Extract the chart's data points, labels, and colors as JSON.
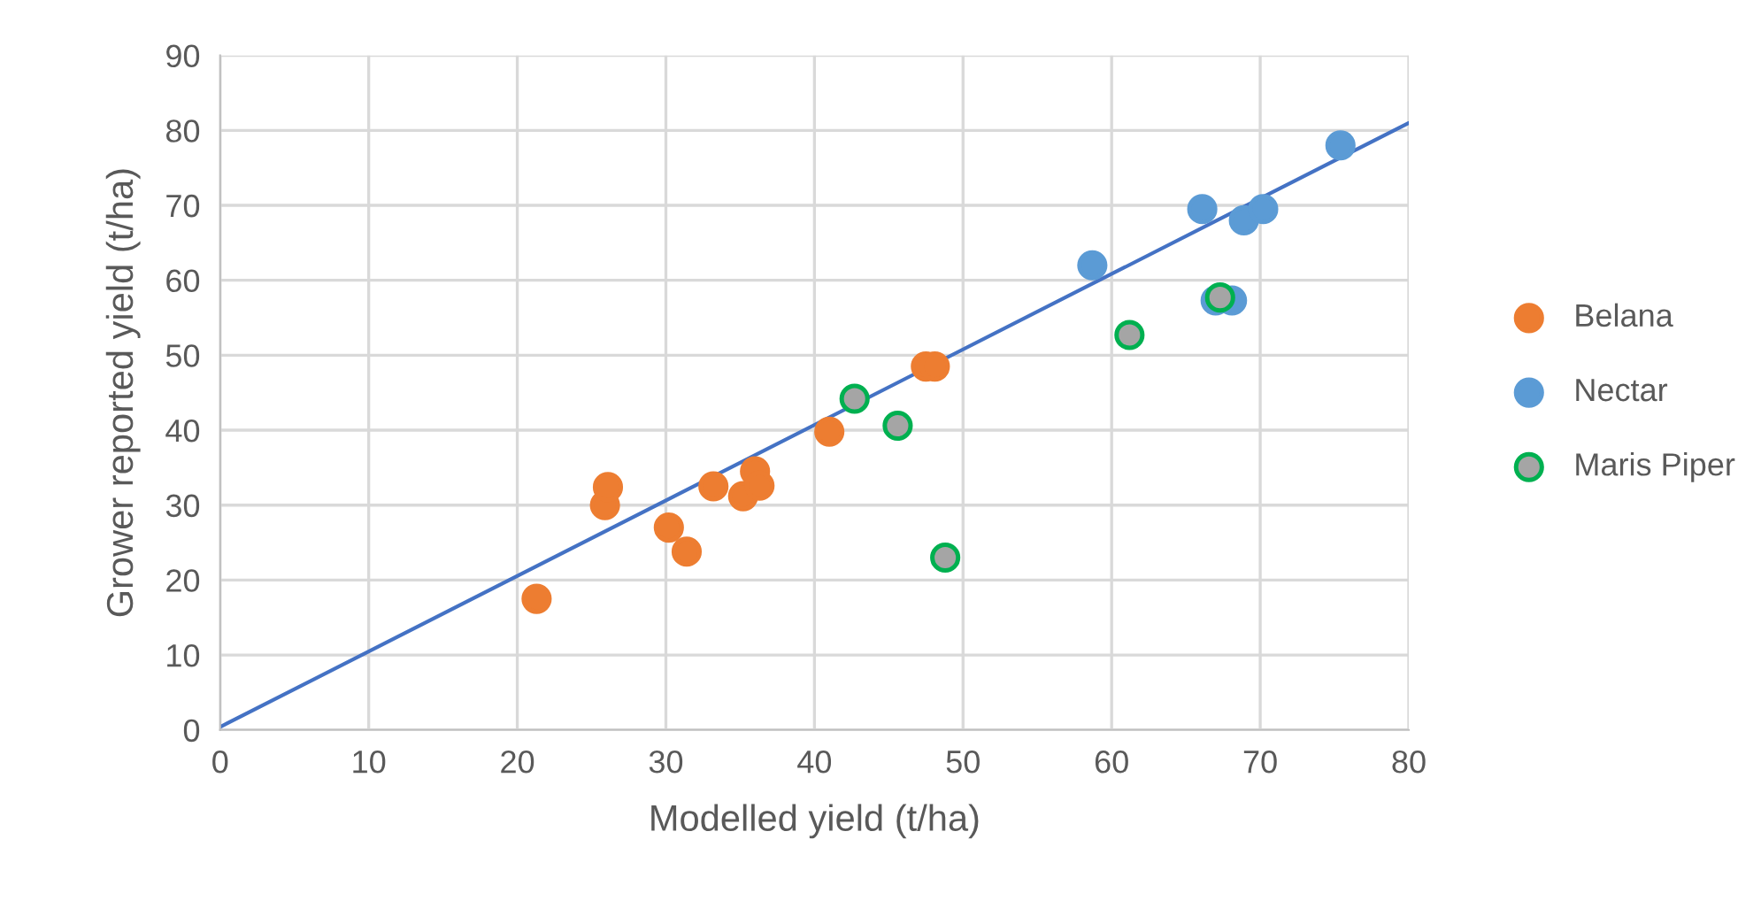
{
  "chart_data": {
    "type": "scatter",
    "xlabel": "Modelled yield (t/ha)",
    "ylabel": "Grower reported yield (t/ha)",
    "xlim": [
      0,
      80
    ],
    "xticks": [
      0,
      10,
      20,
      30,
      40,
      50,
      60,
      70,
      80
    ],
    "ylim": [
      0,
      90
    ],
    "yticks": [
      0,
      10,
      20,
      30,
      40,
      50,
      60,
      70,
      80,
      90
    ],
    "grid": true,
    "legend": "right",
    "series": [
      {
        "name": "Belana",
        "color": "#ed7d31",
        "marker": "circle",
        "x": [
          21.3,
          25.9,
          26.1,
          30.2,
          31.4,
          33.2,
          35.2,
          36.0,
          36.3,
          41.0,
          47.5,
          48.1
        ],
        "values": [
          17.5,
          30.0,
          32.4,
          27.0,
          23.8,
          32.5,
          31.2,
          34.5,
          32.6,
          39.8,
          48.5,
          48.5
        ]
      },
      {
        "name": "Nectar",
        "color": "#5b9bd5",
        "marker": "circle",
        "x": [
          58.7,
          66.1,
          68.9,
          70.2,
          75.4,
          67.0,
          68.1
        ],
        "values": [
          62.0,
          69.5,
          68.0,
          69.5,
          78.0,
          57.3,
          57.3
        ]
      },
      {
        "name": "Maris Piper",
        "color": "#a5a5a5",
        "marker": "circle",
        "x": [
          42.7,
          45.6,
          48.8,
          61.2,
          67.3
        ],
        "values": [
          44.2,
          40.6,
          23.0,
          52.7,
          57.7
        ]
      },
      {
        "type": "line",
        "color": "#4472c4",
        "marker": "none",
        "x": [
          0,
          80
        ],
        "values": [
          0.4,
          81.0
        ]
      }
    ]
  }
}
